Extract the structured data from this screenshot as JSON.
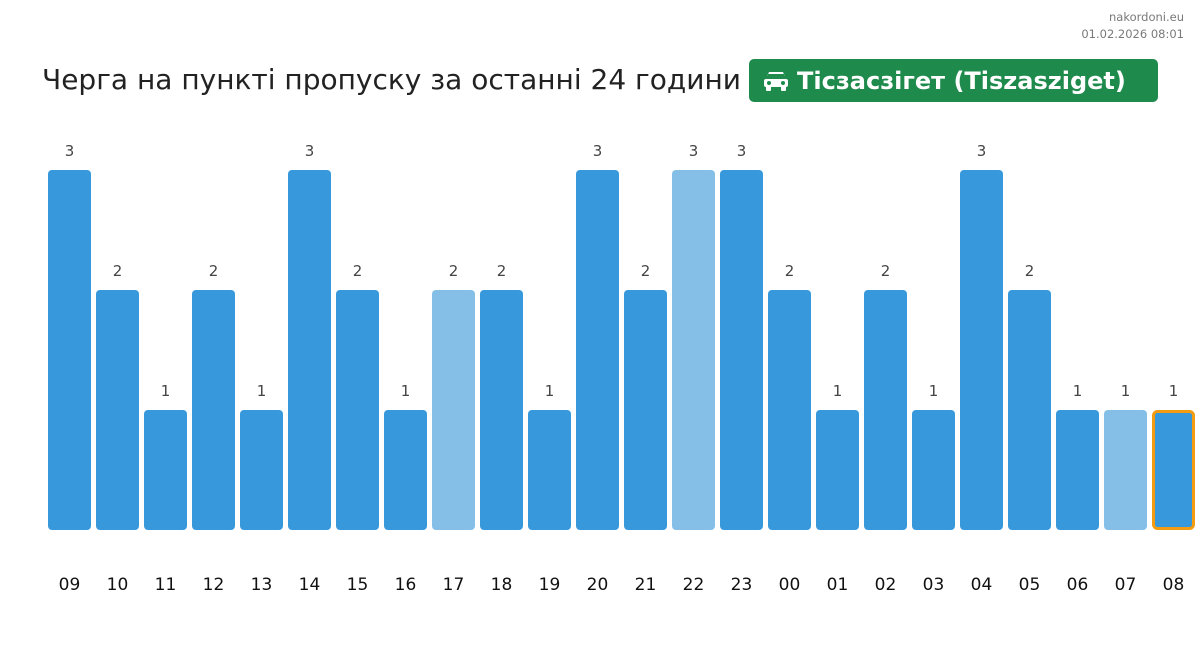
{
  "source": {
    "site": "nakordoni.eu",
    "timestamp": "01.02.2026 08:01"
  },
  "title": "Черга на пункті пропуску за останні 24 години",
  "badge": {
    "icon": "car-icon",
    "label": "Тісзасзігет (Tiszasziget)",
    "color": "#1e8a4c"
  },
  "colors": {
    "bar": "#3798db",
    "bar_light": "#85bfe8",
    "highlight_border": "#f39c12",
    "badge": "#1e8a4c"
  },
  "chart_data": {
    "type": "bar",
    "categories": [
      "09",
      "10",
      "11",
      "12",
      "13",
      "14",
      "15",
      "16",
      "17",
      "18",
      "19",
      "20",
      "21",
      "22",
      "23",
      "00",
      "01",
      "02",
      "03",
      "04",
      "05",
      "06",
      "07",
      "08"
    ],
    "values": [
      3,
      2,
      1,
      2,
      1,
      3,
      2,
      1,
      2,
      2,
      1,
      3,
      2,
      3,
      3,
      2,
      1,
      2,
      1,
      3,
      2,
      1,
      1,
      1
    ],
    "light_categories": [
      "17",
      "22",
      "07"
    ],
    "highlight_category": "08",
    "ylim": [
      0,
      3
    ],
    "grid": false
  }
}
